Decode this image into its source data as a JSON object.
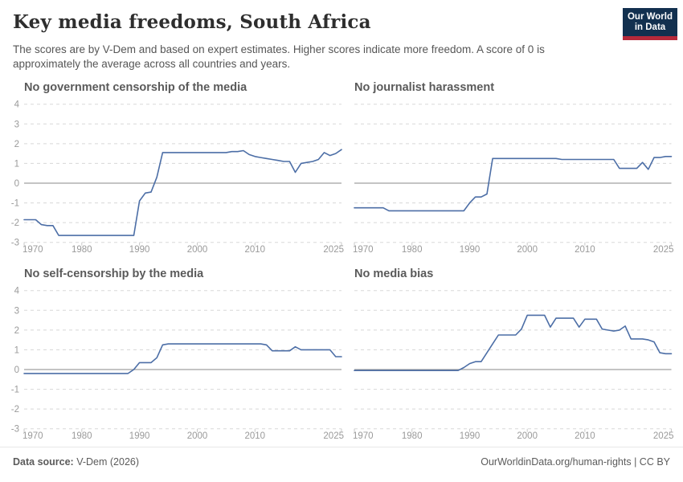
{
  "header": {
    "title": "Key media freedoms, South Africa",
    "subtitle": "The scores are by V-Dem and based on expert estimates. Higher scores indicate more freedom. A score of 0 is approximately the average across all countries and years.",
    "logo": {
      "line1": "Our World",
      "line2": "in Data",
      "bg_color": "#12304f",
      "stripe_color": "#b5293a"
    }
  },
  "footer": {
    "source_label": "Data source:",
    "source_value": "V-Dem (2026)",
    "right_link": "OurWorldinData.org/human-rights",
    "right_suffix": " | CC BY"
  },
  "chart_data": {
    "type": "line",
    "x_range": [
      1970,
      2025
    ],
    "ylim": [
      -3,
      4
    ],
    "yticks": [
      4,
      3,
      2,
      1,
      0,
      -1,
      -2,
      -3
    ],
    "xticks": [
      1970,
      1980,
      1990,
      2000,
      2010,
      2025
    ],
    "line_color": "#4c6ea6",
    "grid": "dashed",
    "legend": "none",
    "charts": [
      {
        "title": "No government censorship of the media",
        "values": [
          -1.85,
          -1.85,
          -1.85,
          -2.1,
          -2.15,
          -2.15,
          -2.65,
          -2.65,
          -2.65,
          -2.65,
          -2.65,
          -2.65,
          -2.65,
          -2.65,
          -2.65,
          -2.65,
          -2.65,
          -2.65,
          -2.65,
          -2.65,
          -0.9,
          -0.5,
          -0.45,
          0.3,
          1.55,
          1.55,
          1.55,
          1.55,
          1.55,
          1.55,
          1.55,
          1.55,
          1.55,
          1.55,
          1.55,
          1.55,
          1.6,
          1.6,
          1.65,
          1.45,
          1.35,
          1.3,
          1.25,
          1.2,
          1.15,
          1.1,
          1.1,
          0.55,
          1.0,
          1.05,
          1.1,
          1.2,
          1.55,
          1.4,
          1.5,
          1.7
        ]
      },
      {
        "title": "No journalist harassment",
        "values": [
          -1.25,
          -1.25,
          -1.25,
          -1.25,
          -1.25,
          -1.25,
          -1.4,
          -1.4,
          -1.4,
          -1.4,
          -1.4,
          -1.4,
          -1.4,
          -1.4,
          -1.4,
          -1.4,
          -1.4,
          -1.4,
          -1.4,
          -1.4,
          -1.0,
          -0.7,
          -0.7,
          -0.55,
          1.25,
          1.25,
          1.25,
          1.25,
          1.25,
          1.25,
          1.25,
          1.25,
          1.25,
          1.25,
          1.25,
          1.25,
          1.2,
          1.2,
          1.2,
          1.2,
          1.2,
          1.2,
          1.2,
          1.2,
          1.2,
          1.2,
          0.75,
          0.75,
          0.75,
          0.75,
          1.05,
          0.7,
          1.3,
          1.3,
          1.35,
          1.35
        ]
      },
      {
        "title": "No self-censorship by the media",
        "values": [
          -0.2,
          -0.2,
          -0.2,
          -0.2,
          -0.2,
          -0.2,
          -0.2,
          -0.2,
          -0.2,
          -0.2,
          -0.2,
          -0.2,
          -0.2,
          -0.2,
          -0.2,
          -0.2,
          -0.2,
          -0.2,
          -0.2,
          0.0,
          0.35,
          0.35,
          0.35,
          0.6,
          1.25,
          1.3,
          1.3,
          1.3,
          1.3,
          1.3,
          1.3,
          1.3,
          1.3,
          1.3,
          1.3,
          1.3,
          1.3,
          1.3,
          1.3,
          1.3,
          1.3,
          1.3,
          1.25,
          0.95,
          0.95,
          0.95,
          0.95,
          1.15,
          1.0,
          1.0,
          1.0,
          1.0,
          1.0,
          1.0,
          0.65,
          0.65
        ]
      },
      {
        "title": "No media bias",
        "values": [
          -0.05,
          -0.05,
          -0.05,
          -0.05,
          -0.05,
          -0.05,
          -0.05,
          -0.05,
          -0.05,
          -0.05,
          -0.05,
          -0.05,
          -0.05,
          -0.05,
          -0.05,
          -0.05,
          -0.05,
          -0.05,
          -0.05,
          0.1,
          0.3,
          0.4,
          0.4,
          0.85,
          1.3,
          1.75,
          1.75,
          1.75,
          1.75,
          2.05,
          2.75,
          2.75,
          2.75,
          2.75,
          2.15,
          2.6,
          2.6,
          2.6,
          2.6,
          2.15,
          2.55,
          2.55,
          2.55,
          2.05,
          2.0,
          1.95,
          2.0,
          2.2,
          1.55,
          1.55,
          1.55,
          1.5,
          1.4,
          0.85,
          0.8,
          0.8
        ]
      }
    ]
  }
}
